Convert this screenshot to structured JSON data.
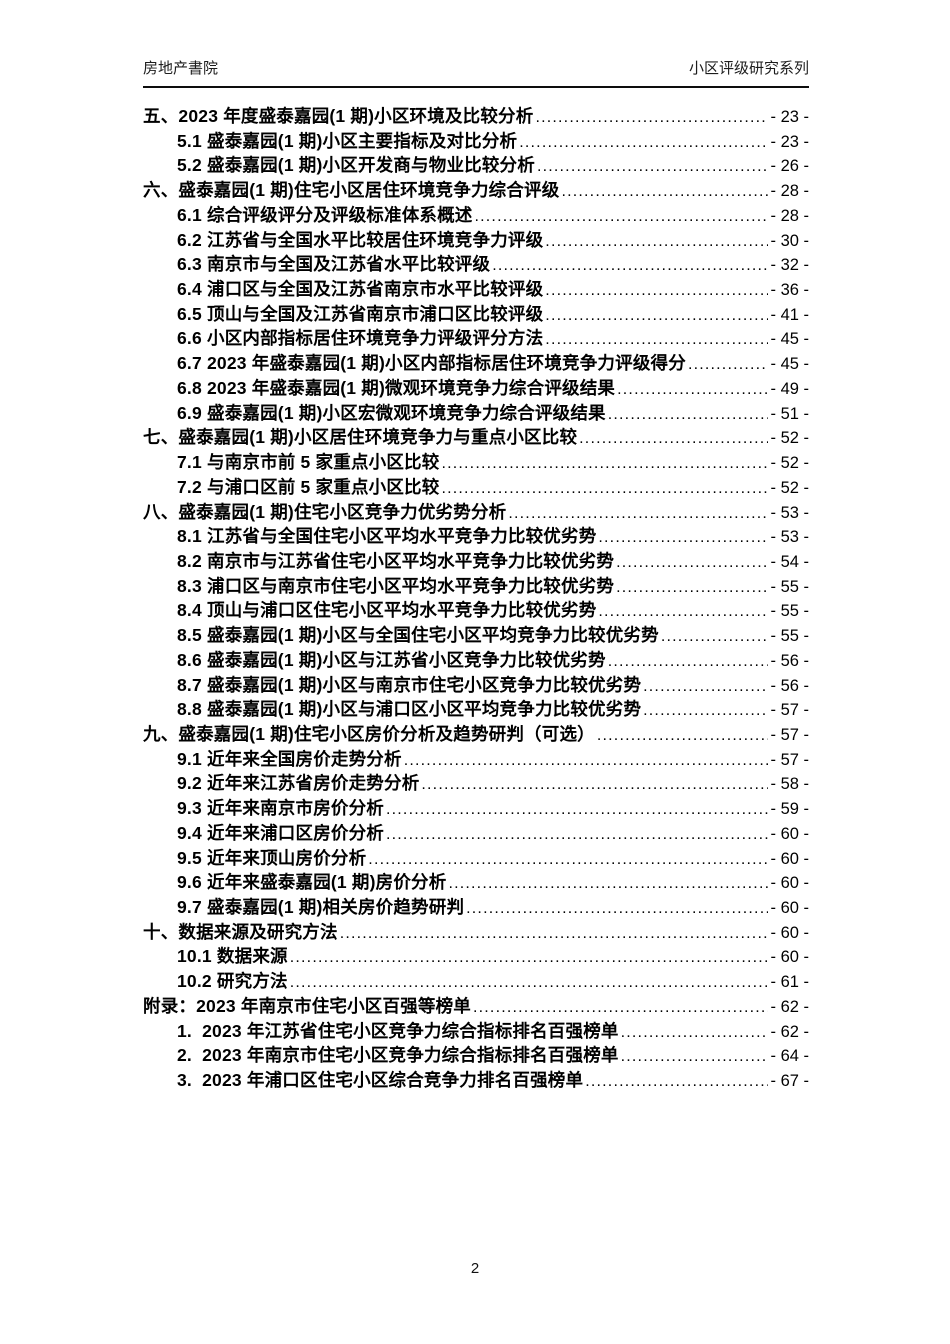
{
  "page": {
    "header": {
      "left_text": "房地产書院",
      "right_text": "小区评级研究系列"
    },
    "footer": {
      "page_number": "2"
    },
    "colors": {
      "background": "#ffffff",
      "text": "#000000",
      "header_rule": "#0d0d0d"
    }
  },
  "toc": {
    "entries": [
      {
        "level": 1,
        "label": "五、2023 年度盛泰嘉园(1 期)小区环境及比较分析",
        "page": "- 23 -"
      },
      {
        "level": 2,
        "label": "5.1 盛泰嘉园(1 期)小区主要指标及对比分析",
        "page": "- 23 -"
      },
      {
        "level": 2,
        "label": "5.2 盛泰嘉园(1 期)小区开发商与物业比较分析",
        "page": "- 26 -"
      },
      {
        "level": 1,
        "label": "六、盛泰嘉园(1 期)住宅小区居住环境竞争力综合评级",
        "page": "- 28 -"
      },
      {
        "level": 2,
        "label": "6.1 综合评级评分及评级标准体系概述",
        "page": "- 28 -"
      },
      {
        "level": 2,
        "label": "6.2 江苏省与全国水平比较居住环境竞争力评级",
        "page": "- 30 -"
      },
      {
        "level": 2,
        "label": "6.3 南京市与全国及江苏省水平比较评级",
        "page": "- 32 -"
      },
      {
        "level": 2,
        "label": "6.4 浦口区与全国及江苏省南京市水平比较评级",
        "page": "- 36 -"
      },
      {
        "level": 2,
        "label": "6.5 顶山与全国及江苏省南京市浦口区比较评级",
        "page": "- 41 -"
      },
      {
        "level": 2,
        "label": "6.6 小区内部指标居住环境竞争力评级评分方法",
        "page": "- 45 -"
      },
      {
        "level": 2,
        "label": "6.7 2023 年盛泰嘉园(1 期)小区内部指标居住环境竞争力评级得分",
        "page": "- 45 -"
      },
      {
        "level": 2,
        "label": "6.8 2023 年盛泰嘉园(1 期)微观环境竞争力综合评级结果",
        "page": "- 49 -"
      },
      {
        "level": 2,
        "label": "6.9 盛泰嘉园(1 期)小区宏微观环境竞争力综合评级结果",
        "page": "- 51 -"
      },
      {
        "level": 1,
        "label": "七、盛泰嘉园(1 期)小区居住环境竞争力与重点小区比较",
        "page": "- 52 -"
      },
      {
        "level": 2,
        "label": "7.1 与南京市前 5 家重点小区比较",
        "page": "- 52 -"
      },
      {
        "level": 2,
        "label": "7.2 与浦口区前 5 家重点小区比较",
        "page": "- 52 -"
      },
      {
        "level": 1,
        "label": "八、盛泰嘉园(1 期)住宅小区竞争力优劣势分析",
        "page": "- 53 -"
      },
      {
        "level": 2,
        "label": "8.1 江苏省与全国住宅小区平均水平竞争力比较优劣势",
        "page": "- 53 -"
      },
      {
        "level": 2,
        "label": "8.2 南京市与江苏省住宅小区平均水平竞争力比较优劣势",
        "page": "- 54 -"
      },
      {
        "level": 2,
        "label": "8.3 浦口区与南京市住宅小区平均水平竞争力比较优劣势",
        "page": "- 55 -"
      },
      {
        "level": 2,
        "label": "8.4 顶山与浦口区住宅小区平均水平竞争力比较优劣势",
        "page": "- 55 -"
      },
      {
        "level": 2,
        "label": "8.5 盛泰嘉园(1 期)小区与全国住宅小区平均竞争力比较优劣势",
        "page": "- 55 -"
      },
      {
        "level": 2,
        "label": "8.6 盛泰嘉园(1 期)小区与江苏省小区竞争力比较优劣势",
        "page": "- 56 -"
      },
      {
        "level": 2,
        "label": "8.7 盛泰嘉园(1 期)小区与南京市住宅小区竞争力比较优劣势",
        "page": "- 56 -"
      },
      {
        "level": 2,
        "label": "8.8 盛泰嘉园(1 期)小区与浦口区小区平均竞争力比较优劣势",
        "page": "- 57 -"
      },
      {
        "level": 1,
        "label": "九、盛泰嘉园(1 期)住宅小区房价分析及趋势研判（可选）",
        "page": "- 57 -"
      },
      {
        "level": 2,
        "label": "9.1 近年来全国房价走势分析",
        "page": "- 57 -"
      },
      {
        "level": 2,
        "label": "9.2 近年来江苏省房价走势分析",
        "page": "- 58 -"
      },
      {
        "level": 2,
        "label": "9.3 近年来南京市房价分析",
        "page": "- 59 -"
      },
      {
        "level": 2,
        "label": "9.4 近年来浦口区房价分析",
        "page": "- 60 -"
      },
      {
        "level": 2,
        "label": "9.5 近年来顶山房价分析",
        "page": "- 60 -"
      },
      {
        "level": 2,
        "label": "9.6 近年来盛泰嘉园(1 期)房价分析",
        "page": "- 60 -"
      },
      {
        "level": 2,
        "label": "9.7 盛泰嘉园(1 期)相关房价趋势研判",
        "page": "- 60 -"
      },
      {
        "level": 1,
        "label": "十、数据来源及研究方法",
        "page": "- 60 -"
      },
      {
        "level": 2,
        "label": "10.1 数据来源",
        "page": "- 60 -"
      },
      {
        "level": 2,
        "label": "10.2 研究方法",
        "page": "- 61 -"
      },
      {
        "level": 1,
        "label": "附录：2023 年南京市住宅小区百强等榜单",
        "page": "- 62 -"
      },
      {
        "level": 2,
        "label": "1.  2023 年江苏省住宅小区竞争力综合指标排名百强榜单",
        "page": "- 62 -"
      },
      {
        "level": 2,
        "label": "2.  2023 年南京市住宅小区竞争力综合指标排名百强榜单",
        "page": "- 64 -"
      },
      {
        "level": 2,
        "label": "3.  2023 年浦口区住宅小区综合竞争力排名百强榜单",
        "page": "- 67 -"
      }
    ]
  }
}
